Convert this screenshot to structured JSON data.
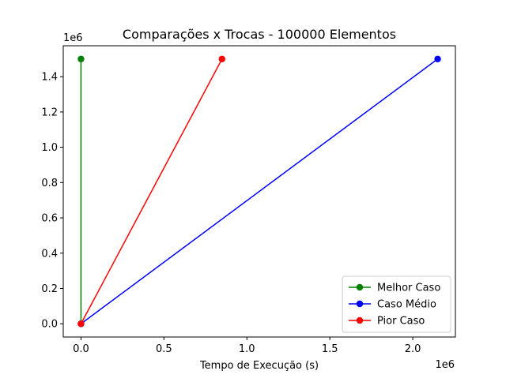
{
  "chart_data": {
    "type": "line",
    "title": "Comparações x Trocas - 100000 Elementos",
    "xlabel": "Tempo de Execução (s)",
    "ylabel": "",
    "x_offset_text": "1e6",
    "y_offset_text": "1e6",
    "xlim": [
      -0.107,
      2.257
    ],
    "ylim": [
      -0.075,
      1.575
    ],
    "x_scale_multiplier": 1000000,
    "y_scale_multiplier": 1000000,
    "x_ticks": [
      0.0,
      0.5,
      1.0,
      1.5,
      2.0
    ],
    "x_tick_labels": [
      "0.0",
      "0.5",
      "1.0",
      "1.5",
      "2.0"
    ],
    "y_ticks": [
      0.0,
      0.2,
      0.4,
      0.6,
      0.8,
      1.0,
      1.2,
      1.4
    ],
    "y_tick_labels": [
      "0.0",
      "0.2",
      "0.4",
      "0.6",
      "0.8",
      "1.0",
      "1.2",
      "1.4"
    ],
    "grid": false,
    "legend_position": "lower-right",
    "series": [
      {
        "name": "Melhor Caso",
        "color": "#008000",
        "x": [
          0,
          0
        ],
        "y": [
          0,
          1.5
        ]
      },
      {
        "name": "Caso Médio",
        "color": "#0000ff",
        "x": [
          0,
          2.15
        ],
        "y": [
          0,
          1.5
        ]
      },
      {
        "name": "Pior Caso",
        "color": "#ff0000",
        "x": [
          0,
          0.85
        ],
        "y": [
          0,
          1.5
        ]
      }
    ]
  }
}
